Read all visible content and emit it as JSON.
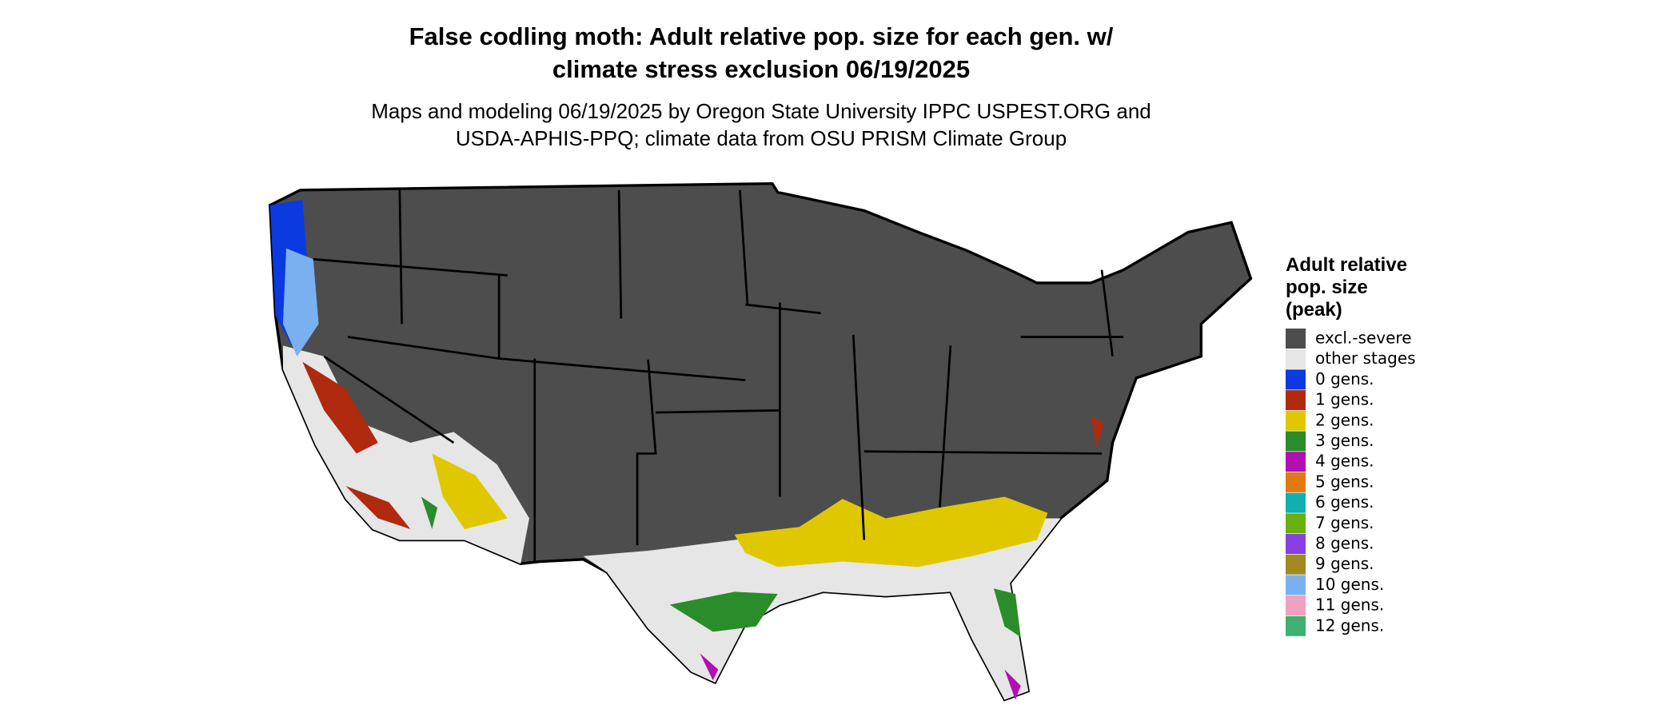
{
  "header": {
    "title": [
      "False codling moth: Adult relative pop. size for each gen. w/",
      "climate stress exclusion 06/19/2025"
    ],
    "subtitle": [
      "Maps and modeling 06/19/2025 by Oregon State University IPPC USPEST.ORG and",
      "USDA-APHIS-PPQ; climate data from OSU PRISM Climate Group"
    ]
  },
  "legend": {
    "title": [
      "Adult relative",
      "pop. size",
      "(peak)"
    ],
    "items": [
      {
        "label": "excl.-severe",
        "color": "#4d4d4d"
      },
      {
        "label": "other stages",
        "color": "#e6e6e6"
      },
      {
        "label": "0 gens.",
        "color": "#0a3ae0"
      },
      {
        "label": "1 gens.",
        "color": "#b02a10"
      },
      {
        "label": "2 gens.",
        "color": "#e0c800"
      },
      {
        "label": "3 gens.",
        "color": "#2a8c2a"
      },
      {
        "label": "4 gens.",
        "color": "#b010b0"
      },
      {
        "label": "5 gens.",
        "color": "#e07a10"
      },
      {
        "label": "6 gens.",
        "color": "#10b0b0"
      },
      {
        "label": "7 gens.",
        "color": "#6ab010"
      },
      {
        "label": "8 gens.",
        "color": "#8a40e0"
      },
      {
        "label": "9 gens.",
        "color": "#a08a20"
      },
      {
        "label": "10 gens.",
        "color": "#7ab0f0"
      },
      {
        "label": "11 gens.",
        "color": "#f0a0c0"
      },
      {
        "label": "12 gens.",
        "color": "#40b070"
      }
    ]
  }
}
